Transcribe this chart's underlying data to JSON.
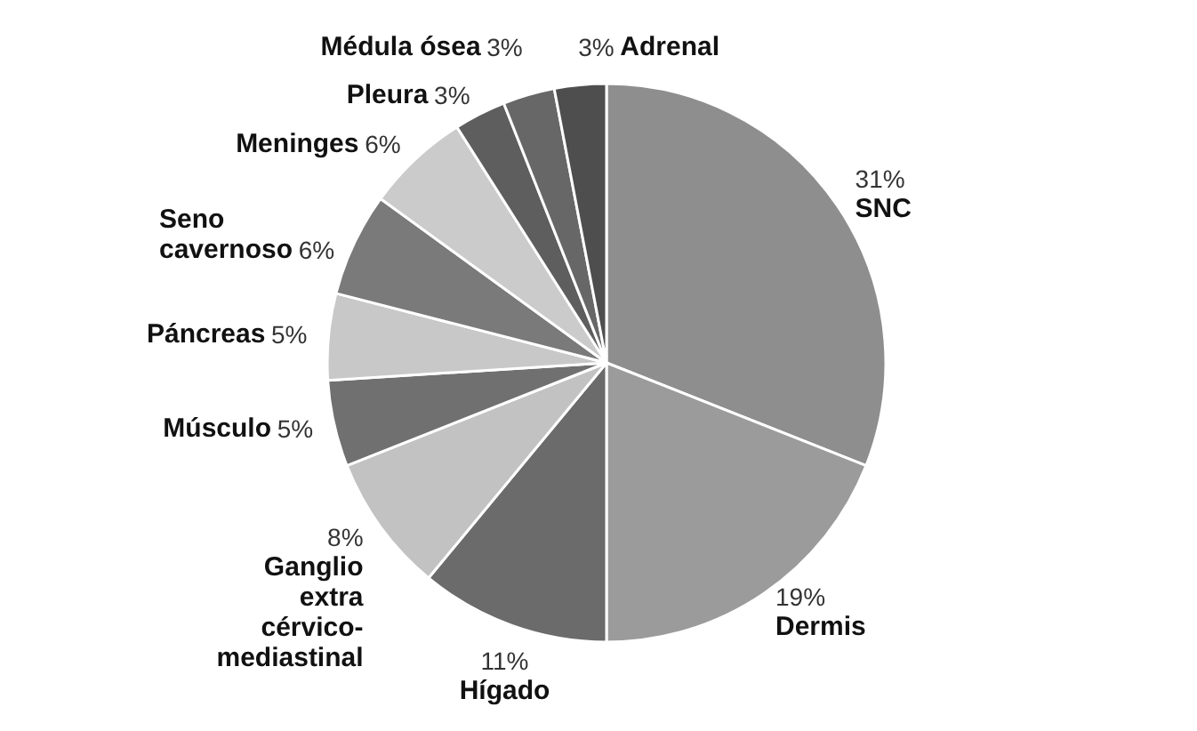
{
  "chart_data": {
    "type": "pie",
    "categories": [
      "SNC",
      "Dermis",
      "Hígado",
      "Ganglio\nextra\ncérvico-\nmediastinal",
      "Músculo",
      "Páncreas",
      "Seno\ncavernoso",
      "Meninges",
      "Pleura",
      "Médula ósea",
      "Adrenal"
    ],
    "values": [
      31,
      19,
      11,
      8,
      5,
      5,
      6,
      6,
      3,
      3,
      3
    ],
    "value_labels": [
      "31%",
      "19%",
      "11%",
      "8%",
      "5%",
      "5%",
      "6%",
      "6%",
      "3%",
      "3%",
      "3%"
    ],
    "colors": [
      "#8e8e8e",
      "#9b9b9b",
      "#6b6b6b",
      "#c2c2c2",
      "#707070",
      "#c8c8c8",
      "#7a7a7a",
      "#cbcbcb",
      "#5e5e5e",
      "#676767",
      "#4e4e4e"
    ]
  }
}
